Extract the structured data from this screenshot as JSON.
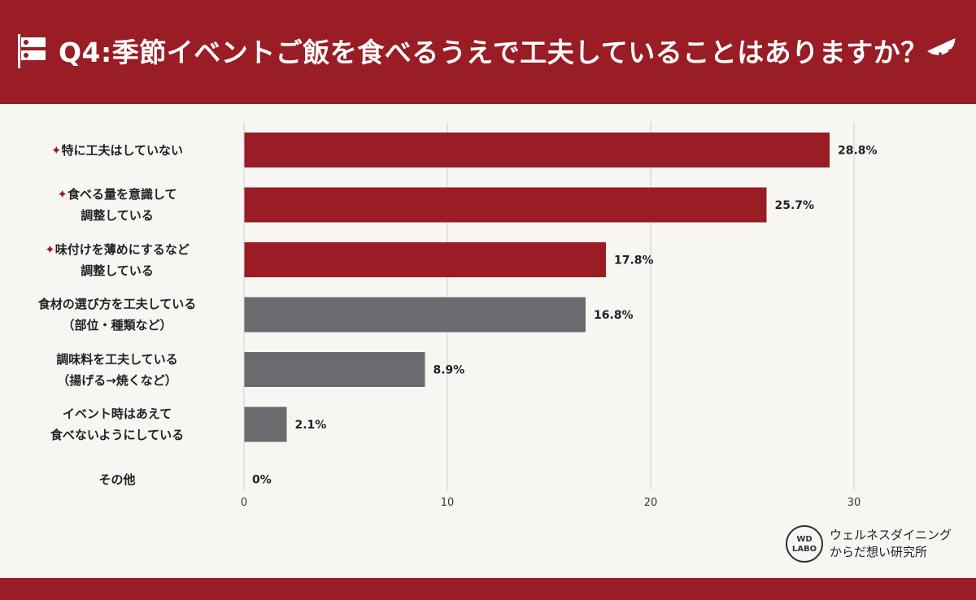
{
  "header": {
    "title": "Q4:季節イベントご飯を食べるうえで工夫していることはありますか？"
  },
  "colors": {
    "brand_red": "#9a1c24",
    "highlight_bar": "#9a1c24",
    "other_bar": "#6b6a6e"
  },
  "icons": [
    "koinobori-flag-icon",
    "watermelon-icon"
  ],
  "chart_data": {
    "type": "bar",
    "orientation": "horizontal",
    "categories": [
      {
        "lines": [
          "特に工夫はしていない"
        ],
        "star": true
      },
      {
        "lines": [
          "食べる量を意識して",
          "調整している"
        ],
        "star": true
      },
      {
        "lines": [
          "味付けを薄めにするなど",
          "調整している"
        ],
        "star": true
      },
      {
        "lines": [
          "食材の選び方を工夫している",
          "（部位・種類など）"
        ],
        "star": false
      },
      {
        "lines": [
          "調味料を工夫している",
          "（揚げる→焼くなど）"
        ],
        "star": false
      },
      {
        "lines": [
          "イベント時はあえて",
          "食べないようにしている"
        ],
        "star": false
      },
      {
        "lines": [
          "その他"
        ],
        "star": false
      }
    ],
    "values": [
      28.8,
      25.7,
      17.8,
      16.8,
      8.9,
      2.1,
      0
    ],
    "value_labels": [
      "28.8%",
      "25.7%",
      "17.8%",
      "16.8%",
      "8.9%",
      "2.1%",
      "0%"
    ],
    "highlighted": [
      true,
      true,
      true,
      false,
      false,
      false,
      false
    ],
    "xlim": [
      0,
      30
    ],
    "xticks": [
      0,
      10,
      20,
      30
    ],
    "grid": true,
    "star_glyph": "✦"
  },
  "logo": {
    "mark": [
      "WD",
      "LABO"
    ],
    "lines": [
      "ウェルネスダイニング",
      "からだ想い研究所"
    ]
  }
}
